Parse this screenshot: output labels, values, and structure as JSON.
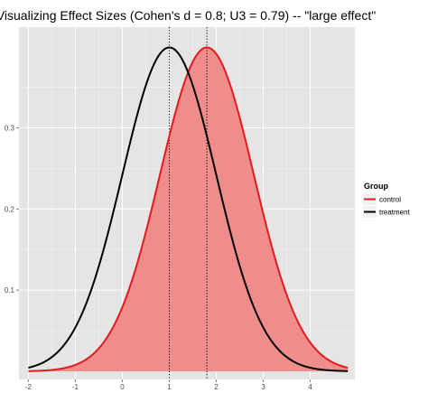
{
  "chart_data": {
    "type": "line",
    "title": "Visualizing Effect Sizes (Cohen's d = 0.8; U3 = 0.79) -- \"large effect\"",
    "xlabel": "",
    "ylabel": "",
    "xlim": [
      -2.2,
      4.95
    ],
    "ylim": [
      -0.01,
      0.424
    ],
    "x_ticks": [
      -2,
      -1,
      0,
      1,
      2,
      3,
      4
    ],
    "y_ticks": [
      0.1,
      0.2,
      0.3
    ],
    "x_tick_labels": [
      "-2",
      "-1",
      "0",
      "1",
      "2",
      "3",
      "4"
    ],
    "y_tick_labels": [
      "0.1",
      "0.2",
      "0.3"
    ],
    "grid": true,
    "background_color": "#e5e5e5",
    "legend": {
      "title": "Group",
      "placement": "right",
      "entries": [
        {
          "label": "control",
          "color": "#e41a1c"
        },
        {
          "label": "treatment",
          "color": "#000000"
        }
      ]
    },
    "series": [
      {
        "name": "control",
        "distribution": "normal",
        "mean": 1.8,
        "sd": 1,
        "x_range": [
          -2,
          4.8
        ],
        "color": "#e41a1c"
      },
      {
        "name": "treatment",
        "distribution": "normal",
        "mean": 1.0,
        "sd": 1,
        "x_range": [
          -2,
          4.8
        ],
        "color": "#000000"
      }
    ],
    "shaded_region": {
      "series": "control",
      "x_range": [
        -2,
        4.8
      ],
      "color": "#f08080"
    },
    "vlines": [
      {
        "x": 1.0,
        "style": "dotted",
        "color": "#000000"
      },
      {
        "x": 1.8,
        "style": "dotted",
        "color": "#000000"
      }
    ]
  }
}
